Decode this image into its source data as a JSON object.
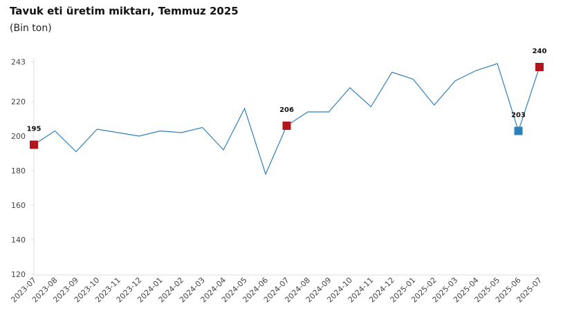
{
  "chart_data": {
    "type": "line",
    "title": "Tavuk eti üretim miktarı, Temmuz 2025",
    "subtitle": "(Bin ton)",
    "categories": [
      "2023-07",
      "2023-08",
      "2023-09",
      "2023-10",
      "2023-11",
      "2023-12",
      "2024-01",
      "2024-02",
      "2024-03",
      "2024-04",
      "2024-05",
      "2024-06",
      "2024-07",
      "2024-08",
      "2024-09",
      "2024-10",
      "2024-11",
      "2024-12",
      "2025-01",
      "2025-02",
      "2025-03",
      "2025-04",
      "2025-05",
      "2025-06",
      "2025-07"
    ],
    "series": [
      {
        "color": "#2f7fb8",
        "values": [
          195,
          203,
          191,
          204,
          202,
          200,
          203,
          202,
          205,
          192,
          216,
          178,
          206,
          214,
          214,
          228,
          217,
          237,
          233,
          218,
          232,
          238,
          242,
          203,
          240
        ],
        "marker_colors": [
          "#b2151c",
          null,
          null,
          null,
          null,
          null,
          null,
          null,
          null,
          null,
          null,
          null,
          "#b2151c",
          null,
          null,
          null,
          null,
          null,
          null,
          null,
          null,
          null,
          null,
          "#2f7fb8",
          "#b2151c"
        ]
      }
    ],
    "ylim": [
      120,
      243
    ],
    "yticks": [
      120,
      140,
      160,
      180,
      200,
      220,
      243
    ],
    "grid": false
  }
}
